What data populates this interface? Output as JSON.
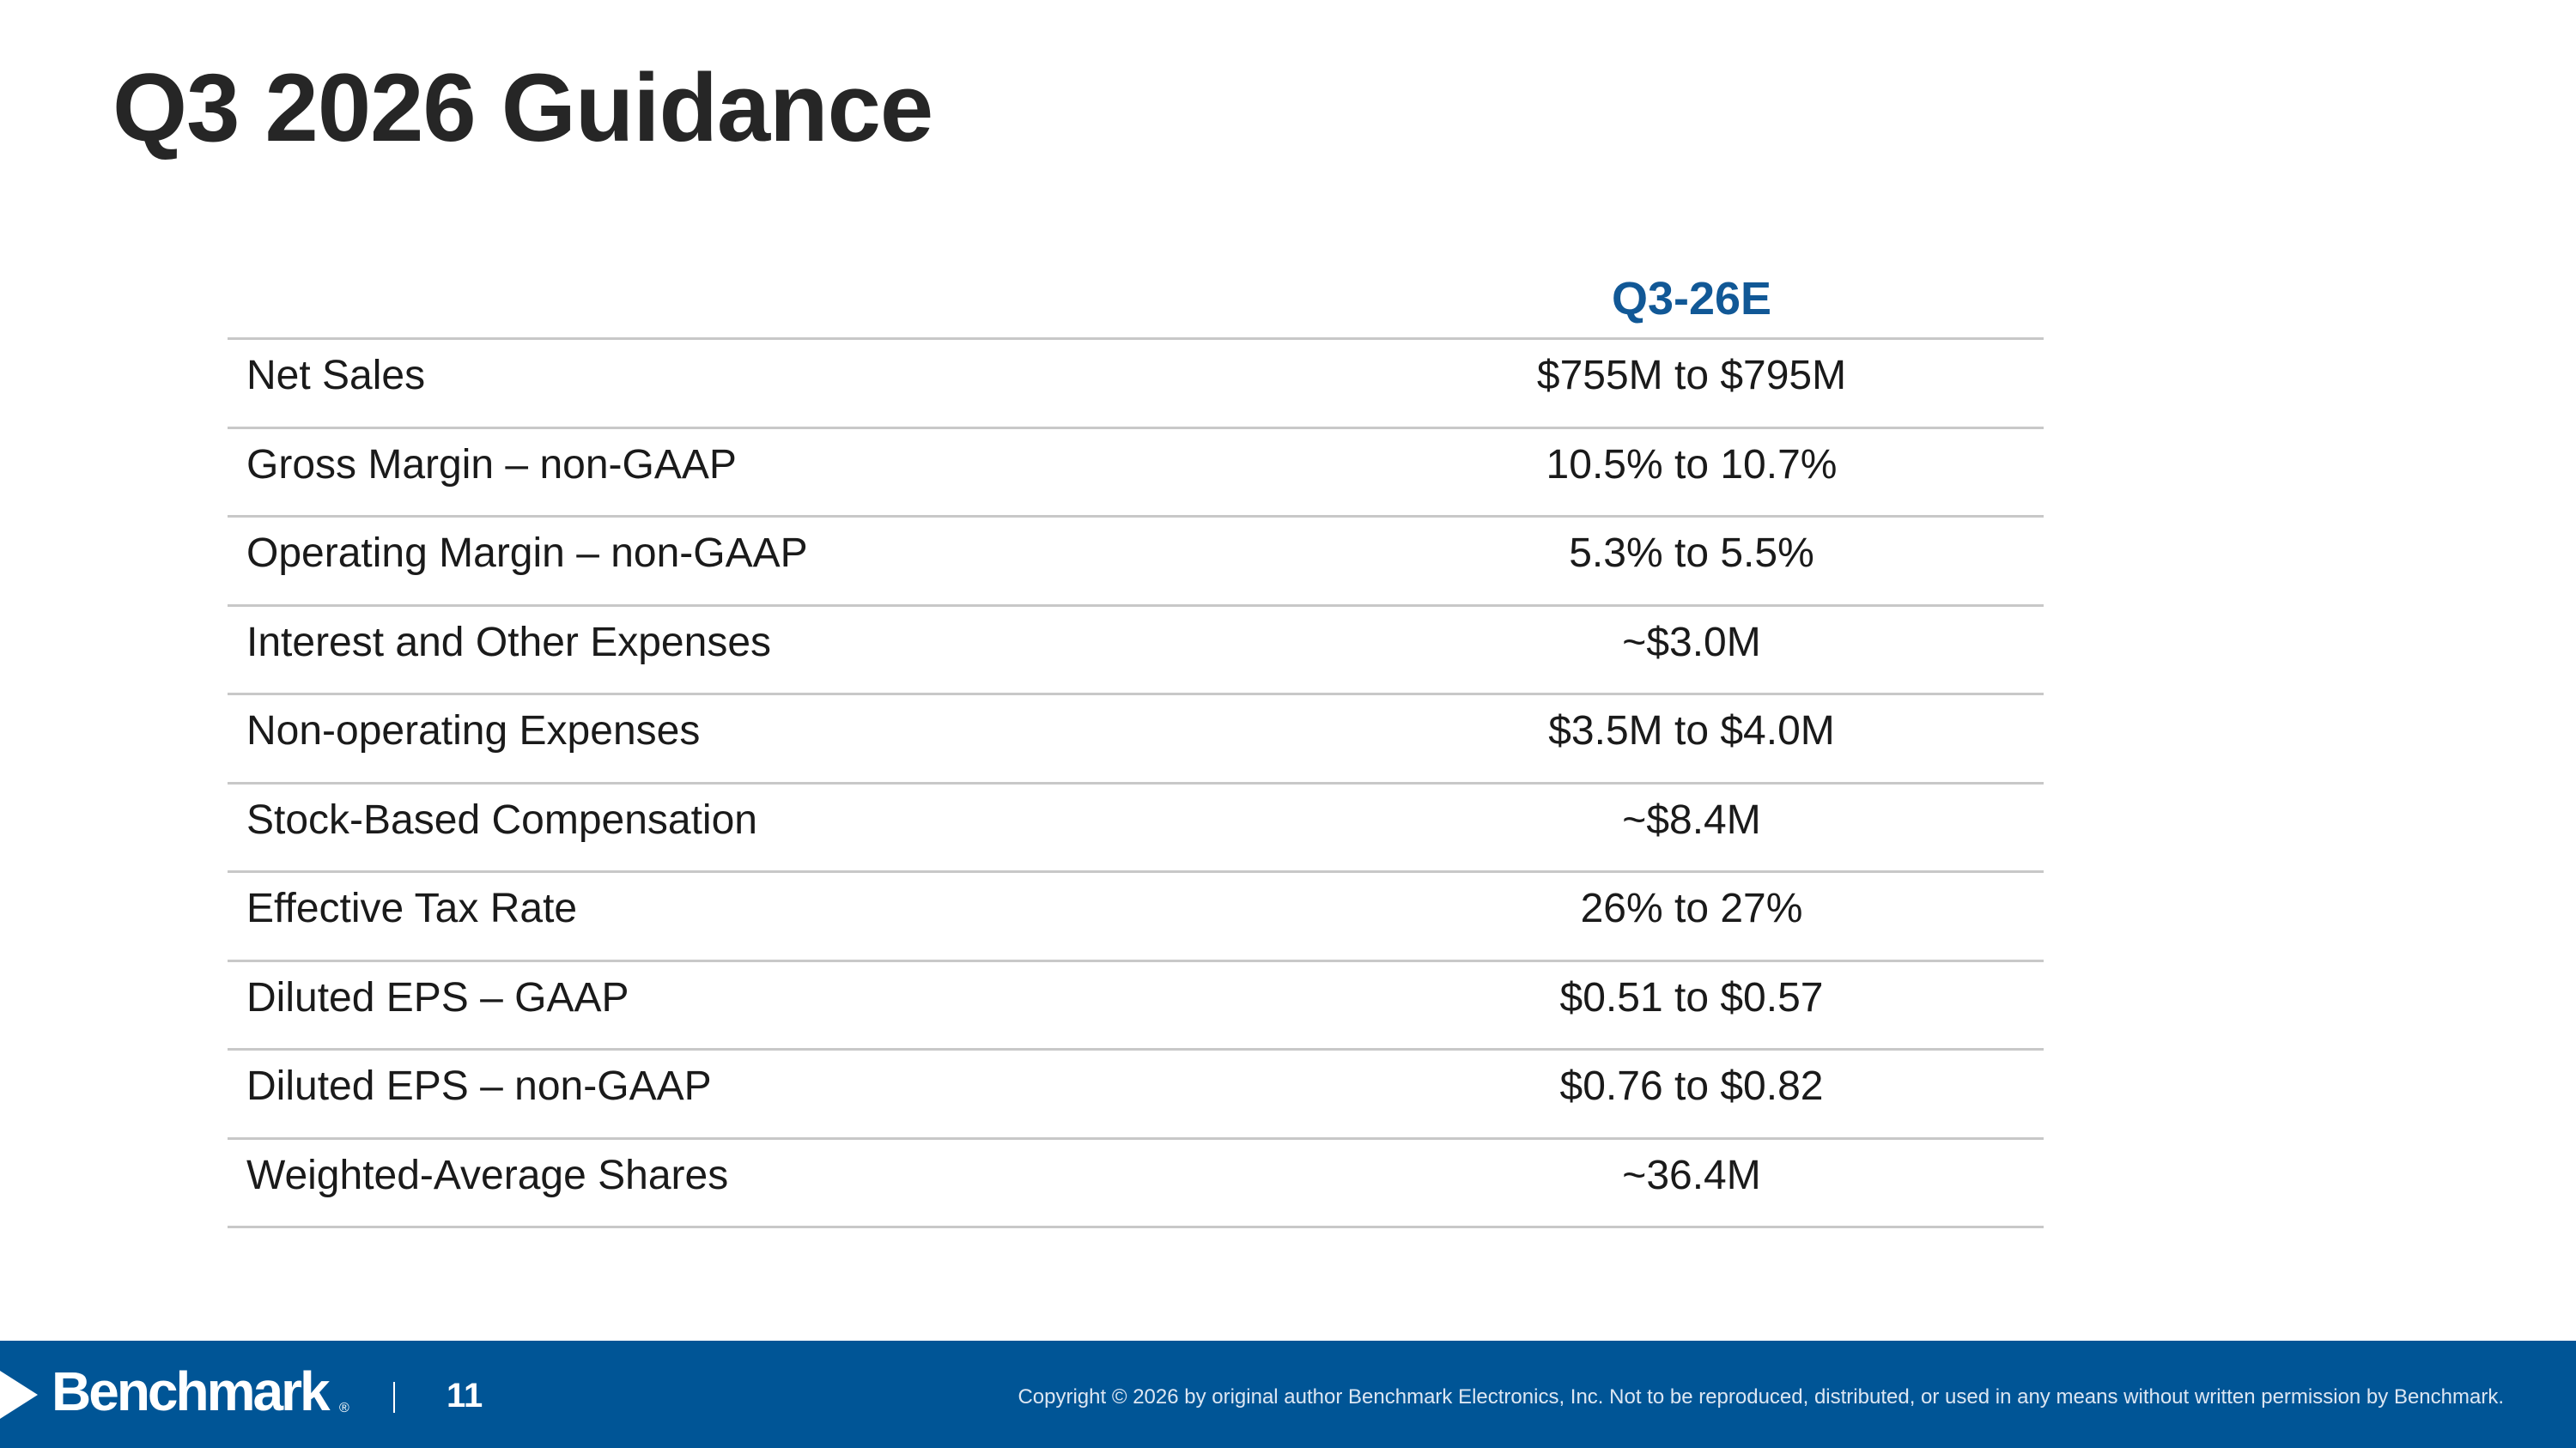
{
  "title": "Q3 2026 Guidance",
  "table": {
    "column_header": "Q3-26E",
    "rows": [
      {
        "label": "Net Sales",
        "value": "$755M to $795M"
      },
      {
        "label": "Gross Margin – non-GAAP",
        "value": "10.5% to 10.7%"
      },
      {
        "label": "Operating Margin – non-GAAP",
        "value": "5.3% to 5.5%"
      },
      {
        "label": "Interest and Other Expenses",
        "value": "~$3.0M"
      },
      {
        "label": "Non-operating Expenses",
        "value": "$3.5M to $4.0M"
      },
      {
        "label": "Stock-Based Compensation",
        "value": "~$8.4M"
      },
      {
        "label": "Effective Tax Rate",
        "value": "26% to 27%"
      },
      {
        "label": "Diluted EPS – GAAP",
        "value": "$0.51 to $0.57"
      },
      {
        "label": "Diluted EPS – non-GAAP",
        "value": "$0.76 to $0.82"
      },
      {
        "label": "Weighted-Average Shares",
        "value": "~36.4M"
      }
    ]
  },
  "footer": {
    "logo_text": "Benchmark",
    "logo_mark": "®",
    "page_number": "11",
    "copyright": "Copyright © 2026 by original author Benchmark Electronics, Inc. Not to be reproduced, distributed, or used in any means without written permission by Benchmark."
  },
  "colors": {
    "title": "#262626",
    "header_accent": "#115896",
    "footer_background": "#005596",
    "divider": "#c8c8c8"
  }
}
